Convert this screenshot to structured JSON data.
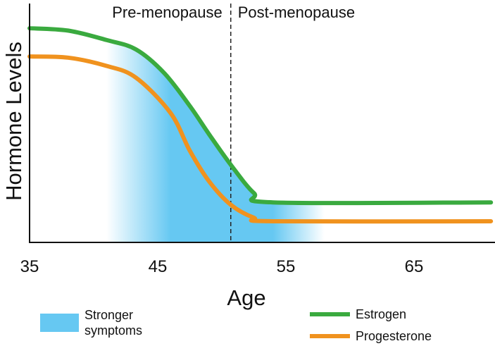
{
  "chart_data": {
    "type": "line",
    "xlabel": "Age",
    "ylabel": "Hormone Levels",
    "xlim": [
      35,
      71
    ],
    "ylim": [
      0,
      100
    ],
    "x_ticks": [
      "35",
      "45",
      "55",
      "65"
    ],
    "x_tick_values": [
      35,
      45,
      55,
      65
    ],
    "y_ticks": [],
    "grid": false,
    "legend_placement": "bottom",
    "annotations": {
      "menopause_age": 50.7,
      "pre_label": "Pre-menopause",
      "post_label": "Post-menopause"
    },
    "shaded_region": {
      "name": "Stronger symptoms",
      "color": "#66c8f2",
      "fade_start": 41,
      "solid_start": 46,
      "solid_end": 54,
      "fade_end": 58
    },
    "series": [
      {
        "name": "Estrogen",
        "color": "#3aaa3f",
        "points": [
          [
            35,
            91
          ],
          [
            38,
            90
          ],
          [
            41,
            86
          ],
          [
            43.3,
            82
          ],
          [
            45.5,
            72
          ],
          [
            47.5,
            58
          ],
          [
            49,
            46
          ],
          [
            50.7,
            33
          ],
          [
            52.5,
            21
          ],
          [
            54,
            17
          ],
          [
            71,
            17
          ]
        ]
      },
      {
        "name": "Progesterone",
        "color": "#f0921e",
        "points": [
          [
            35,
            79
          ],
          [
            38,
            78.5
          ],
          [
            41,
            75
          ],
          [
            43.3,
            70
          ],
          [
            46,
            55
          ],
          [
            47.5,
            39
          ],
          [
            49,
            26
          ],
          [
            50.7,
            16
          ],
          [
            52.5,
            10.5
          ],
          [
            54,
            9
          ],
          [
            71,
            9
          ]
        ]
      }
    ]
  }
}
